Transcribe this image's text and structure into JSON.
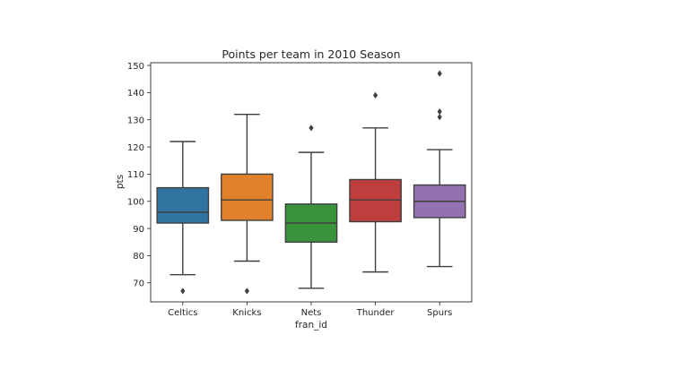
{
  "chart_data": {
    "type": "box",
    "title": "Points per team in 2010 Season",
    "xlabel": "fran_id",
    "ylabel": "pts",
    "ylim": [
      63,
      151
    ],
    "yticks": [
      70,
      80,
      90,
      100,
      110,
      120,
      130,
      140,
      150
    ],
    "grid": false,
    "categories": [
      "Celtics",
      "Knicks",
      "Nets",
      "Thunder",
      "Spurs"
    ],
    "boxes": [
      {
        "category": "Celtics",
        "min": 73,
        "q1": 92,
        "median": 96,
        "q3": 105,
        "max": 122,
        "outliers": [
          67
        ],
        "color": "#3274a1"
      },
      {
        "category": "Knicks",
        "min": 78,
        "q1": 93,
        "median": 100.5,
        "q3": 110,
        "max": 132,
        "outliers": [
          67
        ],
        "color": "#e1812c"
      },
      {
        "category": "Nets",
        "min": 68,
        "q1": 85,
        "median": 92,
        "q3": 99,
        "max": 118,
        "outliers": [
          127
        ],
        "color": "#3a923a"
      },
      {
        "category": "Thunder",
        "min": 74,
        "q1": 92.5,
        "median": 100.5,
        "q3": 108,
        "max": 127,
        "outliers": [
          139
        ],
        "color": "#c03d3e"
      },
      {
        "category": "Spurs",
        "min": 76,
        "q1": 94,
        "median": 100,
        "q3": 106,
        "max": 119,
        "outliers": [
          131,
          133,
          147
        ],
        "color": "#9372b2"
      }
    ]
  }
}
